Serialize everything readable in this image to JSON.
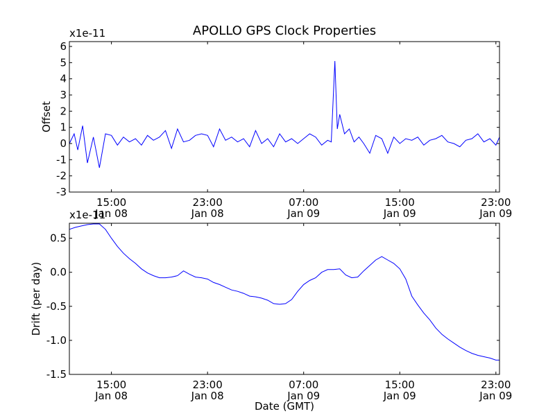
{
  "title": "APOLLO GPS Clock Properties",
  "xlabel": "Date (GMT)",
  "x_ticks": [
    {
      "time": "15:00",
      "date": "Jan 08",
      "hour": 15
    },
    {
      "time": "23:00",
      "date": "Jan 08",
      "hour": 23
    },
    {
      "time": "07:00",
      "date": "Jan 09",
      "hour": 31
    },
    {
      "time": "15:00",
      "date": "Jan 09",
      "hour": 39
    },
    {
      "time": "23:00",
      "date": "Jan 09",
      "hour": 47
    }
  ],
  "line_color": "#0000ff",
  "chart_data": [
    {
      "type": "line",
      "name": "offset",
      "ylabel": "Offset",
      "y_scale_label": "x1e-11",
      "x_unit": "hours since Jan 08 00:00 GMT",
      "xlim": [
        11.5,
        47.3
      ],
      "ylim": [
        -3,
        6.3
      ],
      "yticks": [
        -3,
        -2,
        -1,
        0,
        1,
        2,
        3,
        4,
        5,
        6
      ],
      "ytick_labels": [
        "-3",
        "-2",
        "-1",
        "0",
        "1",
        "2",
        "3",
        "4",
        "5",
        "6"
      ],
      "series": [
        {
          "name": "Offset",
          "x": [
            11.5,
            11.9,
            12.2,
            12.6,
            13.0,
            13.5,
            14.0,
            14.5,
            15.0,
            15.5,
            16.0,
            16.5,
            17.0,
            17.5,
            18.0,
            18.5,
            19.0,
            19.5,
            20.0,
            20.5,
            21.0,
            21.5,
            22.0,
            22.5,
            23.0,
            23.5,
            24.0,
            24.5,
            25.0,
            25.5,
            26.0,
            26.5,
            27.0,
            27.5,
            28.0,
            28.5,
            29.0,
            29.5,
            30.0,
            30.5,
            31.0,
            31.5,
            32.0,
            32.5,
            33.0,
            33.3,
            33.6,
            33.8,
            34.0,
            34.4,
            34.8,
            35.2,
            35.6,
            36.0,
            36.5,
            37.0,
            37.5,
            38.0,
            38.5,
            39.0,
            39.5,
            40.0,
            40.5,
            41.0,
            41.5,
            42.0,
            42.5,
            43.0,
            43.5,
            44.0,
            44.5,
            45.0,
            45.5,
            46.0,
            46.5,
            47.0,
            47.3
          ],
          "y": [
            0.0,
            0.6,
            -0.4,
            1.1,
            -1.2,
            0.4,
            -1.5,
            0.6,
            0.5,
            -0.1,
            0.4,
            0.1,
            0.3,
            -0.1,
            0.5,
            0.2,
            0.4,
            0.8,
            -0.3,
            0.9,
            0.1,
            0.2,
            0.5,
            0.6,
            0.5,
            -0.2,
            0.9,
            0.2,
            0.4,
            0.1,
            0.3,
            -0.2,
            0.8,
            0.0,
            0.3,
            -0.2,
            0.6,
            0.1,
            0.3,
            0.0,
            0.3,
            0.6,
            0.4,
            -0.1,
            0.2,
            0.1,
            5.1,
            0.9,
            1.8,
            0.6,
            0.9,
            0.1,
            0.4,
            0.0,
            -0.6,
            0.5,
            0.3,
            -0.6,
            0.4,
            0.0,
            0.3,
            0.2,
            0.4,
            -0.1,
            0.2,
            0.3,
            0.5,
            0.1,
            0.0,
            -0.2,
            0.2,
            0.3,
            0.6,
            0.1,
            0.3,
            -0.1,
            0.4
          ]
        }
      ]
    },
    {
      "type": "line",
      "name": "drift",
      "ylabel": "Drift (per day)",
      "y_scale_label": "x1e-11",
      "x_unit": "hours since Jan 08 00:00 GMT",
      "xlim": [
        11.5,
        47.3
      ],
      "ylim": [
        -1.5,
        0.72
      ],
      "yticks": [
        -1.5,
        -1.0,
        -0.5,
        0.0,
        0.5
      ],
      "ytick_labels": [
        "-1.5",
        "-1.0",
        "-0.5",
        "0.0",
        "0.5"
      ],
      "series": [
        {
          "name": "Drift",
          "x": [
            11.5,
            12.0,
            12.5,
            13.0,
            13.5,
            14.0,
            14.5,
            15.0,
            15.5,
            16.0,
            16.5,
            17.0,
            17.5,
            18.0,
            18.5,
            19.0,
            19.5,
            20.0,
            20.5,
            21.0,
            21.5,
            22.0,
            22.5,
            23.0,
            23.5,
            24.0,
            24.5,
            25.0,
            25.5,
            26.0,
            26.5,
            27.0,
            27.5,
            28.0,
            28.5,
            29.0,
            29.5,
            30.0,
            30.5,
            31.0,
            31.5,
            32.0,
            32.5,
            33.0,
            33.5,
            34.0,
            34.5,
            35.0,
            35.5,
            36.0,
            36.5,
            37.0,
            37.5,
            38.0,
            38.5,
            39.0,
            39.5,
            40.0,
            40.5,
            41.0,
            41.5,
            42.0,
            42.5,
            43.0,
            43.5,
            44.0,
            44.5,
            45.0,
            45.5,
            46.0,
            46.5,
            47.0,
            47.3
          ],
          "y": [
            0.63,
            0.66,
            0.68,
            0.7,
            0.71,
            0.71,
            0.63,
            0.5,
            0.38,
            0.28,
            0.2,
            0.13,
            0.05,
            -0.01,
            -0.05,
            -0.08,
            -0.08,
            -0.07,
            -0.05,
            0.02,
            -0.03,
            -0.07,
            -0.08,
            -0.1,
            -0.15,
            -0.18,
            -0.22,
            -0.26,
            -0.28,
            -0.31,
            -0.35,
            -0.36,
            -0.38,
            -0.41,
            -0.46,
            -0.47,
            -0.46,
            -0.4,
            -0.28,
            -0.18,
            -0.12,
            -0.08,
            0.0,
            0.04,
            0.04,
            0.05,
            -0.04,
            -0.08,
            -0.07,
            0.02,
            0.1,
            0.18,
            0.23,
            0.18,
            0.13,
            0.05,
            -0.1,
            -0.35,
            -0.48,
            -0.6,
            -0.7,
            -0.82,
            -0.91,
            -0.98,
            -1.04,
            -1.1,
            -1.15,
            -1.19,
            -1.22,
            -1.24,
            -1.26,
            -1.29,
            -1.29
          ]
        }
      ]
    }
  ]
}
